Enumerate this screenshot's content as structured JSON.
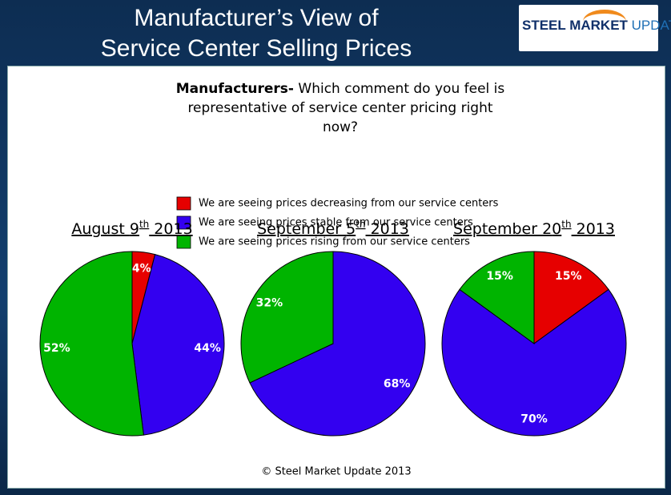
{
  "header": {
    "title": [
      "Manufacturer’s View of",
      "Service Center Selling Prices"
    ],
    "logo": [
      "STEEL MARKET",
      "UPDATE"
    ]
  },
  "question": {
    "lead": "Manufacturers-",
    "text": "Which comment do you feel is representative of service center pricing right now?"
  },
  "chart_data": [
    {
      "type": "pie",
      "title": "August 9th 2013",
      "categories": [
        "We are seeing prices decreasing from our service centers",
        "We are seeing prices stable from our service centers",
        "We are seeing prices rising from our service centers"
      ],
      "colors": [
        "#e60000",
        "#3300f0",
        "#00b400"
      ],
      "values": [
        4,
        44,
        52
      ],
      "value_labels": [
        "4%",
        "44%",
        "52%"
      ]
    },
    {
      "type": "pie",
      "title": "September 5th 2013",
      "categories": [
        "We are seeing prices decreasing from our service centers",
        "We are seeing prices stable from our service centers",
        "We are seeing prices rising from our service centers"
      ],
      "colors": [
        "#e60000",
        "#3300f0",
        "#00b400"
      ],
      "values": [
        0,
        68,
        32
      ],
      "value_labels": [
        null,
        "68%",
        "32%"
      ]
    },
    {
      "type": "pie",
      "title": "September 20th 2013",
      "categories": [
        "We are seeing prices decreasing from our service centers",
        "We are seeing prices stable from our service centers",
        "We are seeing prices rising from our service centers"
      ],
      "colors": [
        "#e60000",
        "#3300f0",
        "#00b400"
      ],
      "values": [
        15,
        70,
        15
      ],
      "value_labels": [
        "15%",
        "70%",
        "15%"
      ]
    }
  ],
  "footer": "© Steel Market Update 2013"
}
